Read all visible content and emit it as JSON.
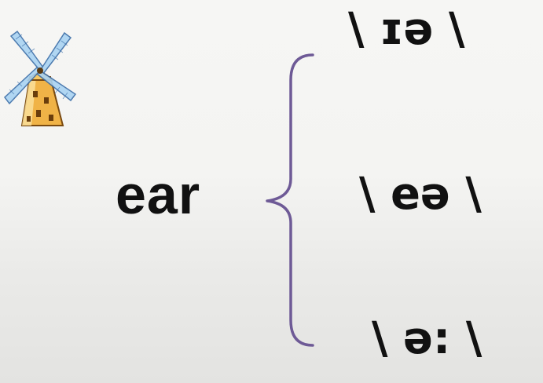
{
  "word": "ear",
  "pronunciations": [
    "\\ ɪə \\",
    "\\ eə \\",
    "\\ ə: \\"
  ],
  "icons": {
    "windmill": "windmill-icon",
    "brace": "curly-brace"
  },
  "colors": {
    "brace": "#6e5a96",
    "text": "#111111"
  }
}
